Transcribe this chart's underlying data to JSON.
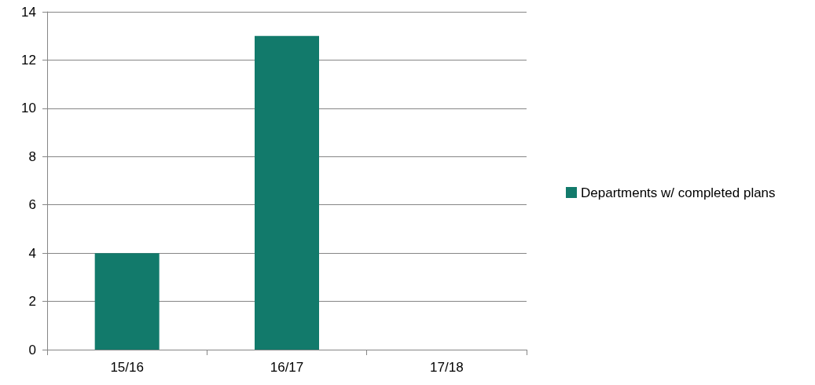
{
  "chart_data": {
    "type": "bar",
    "categories": [
      "15/16",
      "16/17",
      "17/18"
    ],
    "series": [
      {
        "name": "Departments w/ completed plans",
        "color": "#127a6b",
        "values": [
          4,
          13,
          0
        ]
      }
    ],
    "ylim": [
      0,
      14
    ],
    "yticks": [
      0,
      2,
      4,
      6,
      8,
      10,
      12,
      14
    ],
    "grid": "y",
    "legend": "right"
  }
}
